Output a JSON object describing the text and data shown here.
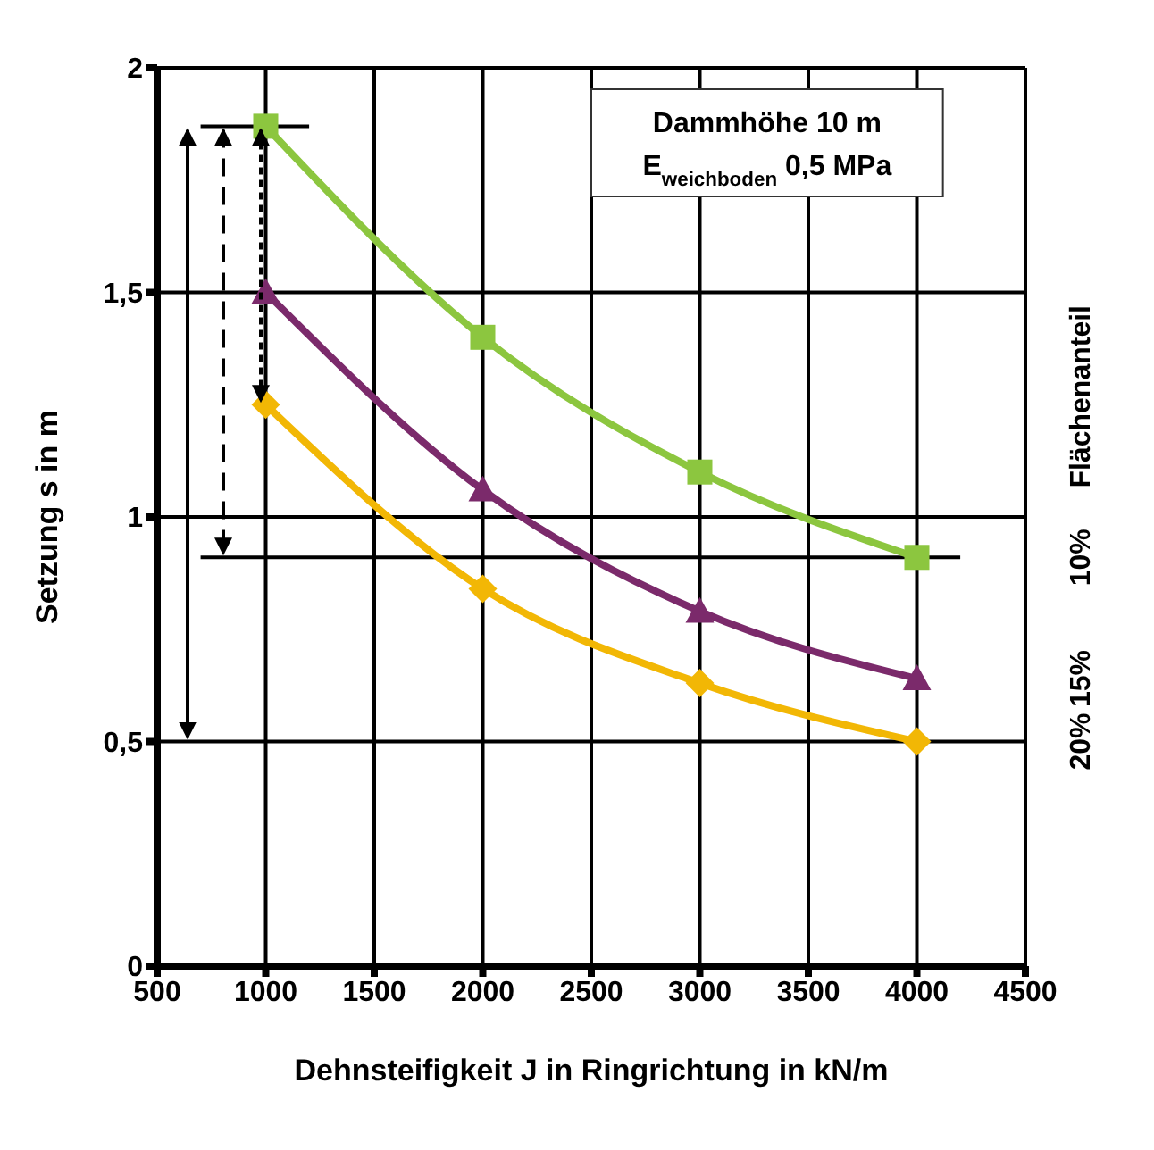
{
  "chart_data": {
    "type": "line",
    "annotations": [
      "Dammhöhe 10 m",
      "E$_{weichboden}$ 0,5 MPa"
    ],
    "xlabel": "Dehnsteifigkeit J in Ringrichtung in kN/m",
    "ylabel": "Setzung s in m",
    "legend_title": "Flächenanteil",
    "x": [
      1000,
      2000,
      3000,
      4000
    ],
    "series": [
      {
        "name": "10%",
        "color": "#8cc63f",
        "marker": "square",
        "values": [
          1.87,
          1.4,
          1.1,
          0.91
        ]
      },
      {
        "name": "15%",
        "color": "#7b2a6b",
        "marker": "triangle",
        "values": [
          1.5,
          1.06,
          0.79,
          0.64
        ]
      },
      {
        "name": "20%",
        "color": "#f2b705",
        "marker": "diamond",
        "values": [
          1.25,
          0.84,
          0.63,
          0.5
        ]
      }
    ],
    "xlim": [
      500,
      4500
    ],
    "xticks": [
      500,
      1000,
      1500,
      2000,
      2500,
      3000,
      3500,
      4000,
      4500
    ],
    "ylim": [
      0,
      2
    ],
    "yticks": [
      0,
      {
        "value": 0.5,
        "label": "0,5"
      },
      1,
      {
        "value": 1.5,
        "label": "1,5"
      },
      2
    ],
    "ref_lines": [
      {
        "axis": "y",
        "value": 1.87,
        "color": "#000000"
      },
      {
        "axis": "y",
        "value": 0.91,
        "color": "#000000"
      }
    ],
    "grid": true
  }
}
